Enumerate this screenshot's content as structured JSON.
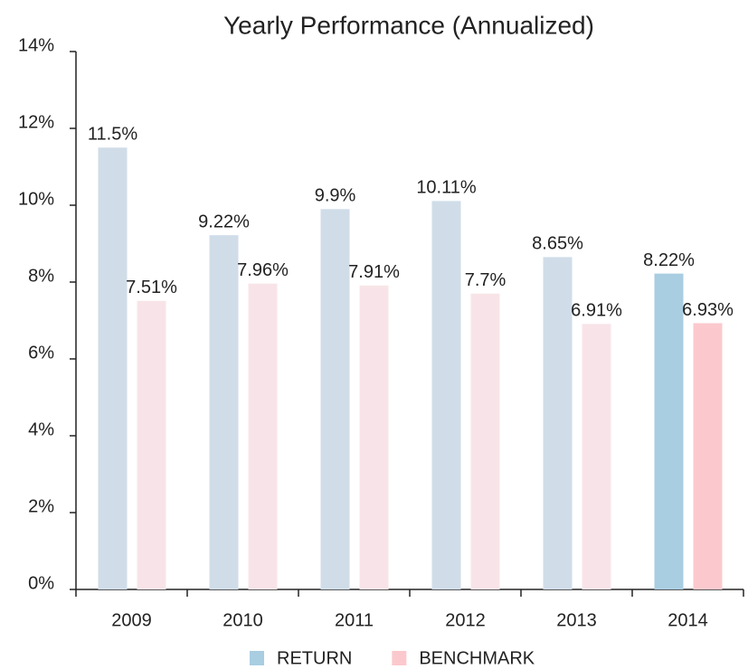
{
  "chart_data": {
    "type": "bar",
    "title": "Yearly Performance (Annualized)",
    "categories": [
      "2009",
      "2010",
      "2011",
      "2012",
      "2013",
      "2014"
    ],
    "series": [
      {
        "name": "RETURN",
        "color": "#a9cde1",
        "colors": [
          "#d0dde9",
          "#d0dde9",
          "#d0dde9",
          "#d0dde9",
          "#d0dde9",
          "#a9cde1"
        ],
        "values": [
          11.5,
          9.22,
          9.9,
          10.11,
          8.65,
          8.22
        ],
        "value_labels": [
          "11.5%",
          "9.22%",
          "9.9%",
          "10.11%",
          "8.65%",
          "8.22%"
        ]
      },
      {
        "name": "BENCHMARK",
        "color": "#fbc9cd",
        "colors": [
          "#f8e4e8",
          "#f8e4e8",
          "#f8e4e8",
          "#f8e4e8",
          "#f8e4e8",
          "#fbc9cd"
        ],
        "values": [
          7.51,
          7.96,
          7.91,
          7.7,
          6.91,
          6.93
        ],
        "value_labels": [
          "7.51%",
          "7.96%",
          "7.91%",
          "7.7%",
          "6.91%",
          "6.93%"
        ]
      }
    ],
    "ylim": [
      0,
      14
    ],
    "yticks": [
      {
        "value": 0,
        "label": "0%"
      },
      {
        "value": 2,
        "label": "2%"
      },
      {
        "value": 4,
        "label": "4%"
      },
      {
        "value": 6,
        "label": "6%"
      },
      {
        "value": 8,
        "label": "8%"
      },
      {
        "value": 10,
        "label": "10%"
      },
      {
        "value": 12,
        "label": "12%"
      },
      {
        "value": 14,
        "label": "14%"
      }
    ],
    "grid": false,
    "legend": "bottom"
  }
}
